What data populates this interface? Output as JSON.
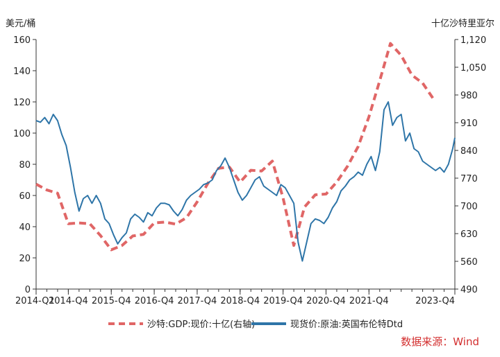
{
  "chart_data": {
    "type": "line",
    "left_unit_label": "美元/桶",
    "right_unit_label": "十亿沙特里亚尔",
    "left_axis": {
      "ylim": [
        0,
        160
      ],
      "ticks": [
        0,
        20,
        40,
        60,
        80,
        100,
        120,
        140,
        160
      ]
    },
    "right_axis": {
      "ylim": [
        490,
        1120
      ],
      "ticks": [
        490,
        560,
        630,
        700,
        770,
        840,
        910,
        980,
        1050,
        1120
      ],
      "tick_labels": [
        "490",
        "560",
        "630",
        "700",
        "770",
        "840",
        "910",
        "980",
        "1,050",
        "1,120"
      ]
    },
    "x_axis": {
      "range": [
        2014.0,
        2023.75
      ],
      "ticks": [
        2014.0,
        2014.75,
        2015.75,
        2016.75,
        2017.75,
        2018.75,
        2019.75,
        2020.75,
        2021.75,
        2023.75
      ],
      "tick_labels": [
        "2014-Q1",
        "2014-Q4",
        "2015-Q4",
        "2016-Q4",
        "2017-Q4",
        "2018-Q4",
        "2019-Q4",
        "2020-Q4",
        "2021-Q4",
        "2023-Q4"
      ]
    },
    "series": [
      {
        "name": "沙特:GDP:现价:十亿(右轴)",
        "axis": "right",
        "style": "dashed",
        "color": "#e06666",
        "x": [
          2014.0,
          2014.25,
          2014.5,
          2014.75,
          2015.0,
          2015.25,
          2015.5,
          2015.75,
          2016.0,
          2016.25,
          2016.5,
          2016.75,
          2017.0,
          2017.25,
          2017.5,
          2017.75,
          2018.0,
          2018.25,
          2018.5,
          2018.75,
          2019.0,
          2019.25,
          2019.5,
          2019.75,
          2020.0,
          2020.25,
          2020.5,
          2020.75,
          2021.0,
          2021.25,
          2021.5,
          2021.75,
          2022.0,
          2022.25,
          2022.5,
          2022.75,
          2023.0,
          2023.25
        ],
        "values": [
          755,
          740,
          732,
          655,
          657,
          655,
          625,
          589,
          600,
          624,
          628,
          657,
          659,
          654,
          670,
          710,
          757,
          795,
          798,
          760,
          790,
          788,
          813,
          720,
          600,
          697,
          728,
          730,
          760,
          800,
          850,
          925,
          1016,
          1110,
          1080,
          1030,
          1010,
          970
        ]
      },
      {
        "name": "现货价:原油:英国布伦特Dtd",
        "axis": "left",
        "style": "solid",
        "color": "#2e75a8",
        "x": [
          2014.0,
          2014.1,
          2014.2,
          2014.3,
          2014.4,
          2014.5,
          2014.6,
          2014.7,
          2014.8,
          2014.9,
          2015.0,
          2015.1,
          2015.2,
          2015.3,
          2015.4,
          2015.5,
          2015.6,
          2015.7,
          2015.8,
          2015.9,
          2016.0,
          2016.1,
          2016.2,
          2016.3,
          2016.4,
          2016.5,
          2016.6,
          2016.7,
          2016.8,
          2016.9,
          2017.0,
          2017.1,
          2017.2,
          2017.3,
          2017.4,
          2017.5,
          2017.6,
          2017.7,
          2017.8,
          2017.9,
          2018.0,
          2018.1,
          2018.2,
          2018.3,
          2018.4,
          2018.5,
          2018.6,
          2018.7,
          2018.8,
          2018.9,
          2019.0,
          2019.1,
          2019.2,
          2019.3,
          2019.4,
          2019.5,
          2019.6,
          2019.7,
          2019.8,
          2019.9,
          2020.0,
          2020.1,
          2020.2,
          2020.3,
          2020.4,
          2020.5,
          2020.6,
          2020.7,
          2020.8,
          2020.9,
          2021.0,
          2021.1,
          2021.2,
          2021.3,
          2021.4,
          2021.5,
          2021.6,
          2021.7,
          2021.8,
          2021.9,
          2022.0,
          2022.1,
          2022.2,
          2022.3,
          2022.4,
          2022.5,
          2022.6,
          2022.7,
          2022.8,
          2022.9,
          2023.0,
          2023.1,
          2023.2,
          2023.3,
          2023.4,
          2023.5,
          2023.6,
          2023.7,
          2023.75
        ],
        "values": [
          108,
          107,
          110,
          106,
          112,
          108,
          99,
          92,
          78,
          62,
          50,
          58,
          60,
          55,
          60,
          55,
          45,
          42,
          35,
          29,
          33,
          36,
          45,
          48,
          46,
          43,
          49,
          47,
          52,
          55,
          55,
          54,
          50,
          47,
          51,
          57,
          60,
          62,
          64,
          67,
          68,
          70,
          76,
          79,
          84,
          78,
          70,
          62,
          57,
          60,
          65,
          70,
          72,
          66,
          64,
          62,
          60,
          67,
          65,
          60,
          55,
          30,
          18,
          30,
          42,
          45,
          44,
          42,
          46,
          52,
          56,
          63,
          66,
          70,
          72,
          75,
          73,
          80,
          85,
          76,
          88,
          115,
          120,
          105,
          110,
          112,
          95,
          100,
          90,
          88,
          82,
          80,
          78,
          76,
          78,
          75,
          80,
          90,
          97
        ]
      }
    ],
    "legend": {
      "placement": "bottom-center"
    }
  },
  "source": "数据来源：Wind"
}
